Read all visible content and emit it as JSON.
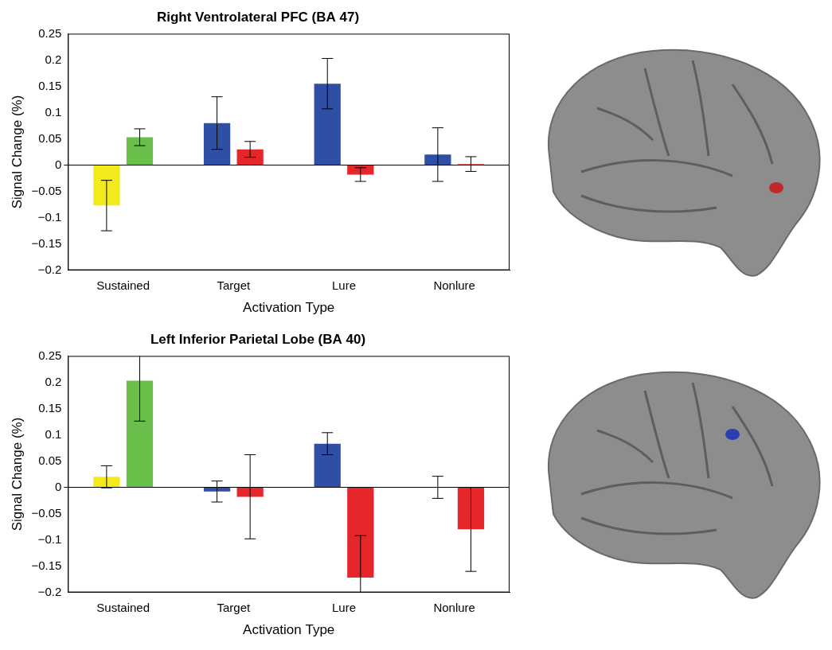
{
  "chart_data": [
    {
      "type": "bar",
      "title": "Right Ventrolateral PFC (BA 47)",
      "x_label": "Activation Type",
      "y_label": "Signal Change (%)",
      "categories": [
        "Sustained",
        "Target",
        "Lure",
        "Nonlure"
      ],
      "series": [
        {
          "colors": [
            "#f3ea1c",
            "#2f4fa5",
            "#2f4fa5",
            "#2f4fa5"
          ],
          "values": [
            -0.077,
            0.08,
            0.155,
            0.02
          ],
          "errors": [
            0.048,
            0.05,
            0.048,
            0.051
          ]
        },
        {
          "colors": [
            "#6abf4b",
            "#e5262b",
            "#e5262b",
            "#e5262b"
          ],
          "values": [
            0.053,
            0.03,
            -0.018,
            0.002
          ],
          "errors": [
            0.016,
            0.015,
            0.013,
            0.014
          ]
        }
      ],
      "ylim": [
        -0.2,
        0.25
      ],
      "yticks": [
        {
          "value": -0.2,
          "label": "−0.2"
        },
        {
          "value": -0.15,
          "label": "−0.15"
        },
        {
          "value": -0.1,
          "label": "−0.1"
        },
        {
          "value": -0.05,
          "label": "−0.05"
        },
        0,
        0.05,
        0.1,
        0.15,
        0.2,
        0.25
      ],
      "grid": false
    },
    {
      "type": "bar",
      "title": "Left Inferior Parietal Lobe (BA 40)",
      "x_label": "Activation Type",
      "y_label": "Signal Change (%)",
      "categories": [
        "Sustained",
        "Target",
        "Lure",
        "Nonlure"
      ],
      "series": [
        {
          "colors": [
            "#f3ea1c",
            "#2f4fa5",
            "#2f4fa5",
            "#2f4fa5"
          ],
          "values": [
            0.02,
            -0.008,
            0.083,
            0
          ],
          "errors": [
            0.021,
            0.02,
            0.021,
            0.021
          ]
        },
        {
          "colors": [
            "#6abf4b",
            "#e5262b",
            "#e5262b",
            "#e5262b"
          ],
          "values": [
            0.203,
            -0.018,
            -0.172,
            -0.08
          ],
          "errors": [
            0.077,
            0.08,
            0.08,
            0.08
          ]
        }
      ],
      "ylim": [
        -0.2,
        0.25
      ],
      "yticks": [
        {
          "value": -0.2,
          "label": "−0.2"
        },
        {
          "value": -0.15,
          "label": "−0.15"
        },
        {
          "value": -0.1,
          "label": "−0.1"
        },
        {
          "value": -0.05,
          "label": "−0.05"
        },
        0,
        0.05,
        0.1,
        0.15,
        0.2,
        0.25
      ],
      "grid": false
    }
  ]
}
